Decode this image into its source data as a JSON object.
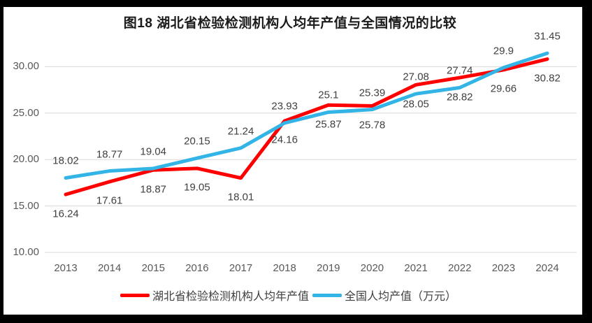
{
  "window": {
    "frame_color": "#000000",
    "background": "#FFFFFF"
  },
  "chart_data": {
    "type": "line",
    "title": "图18 湖北省检验检测机构人均年产值与全国情况的比较",
    "categories": [
      "2013",
      "2014",
      "2015",
      "2016",
      "2017",
      "2018",
      "2019",
      "2020",
      "2021",
      "2022",
      "2023",
      "2024"
    ],
    "series": [
      {
        "name": "湖北省检验检测机构人均年产值",
        "color": "#FF0000",
        "label_side": "below",
        "values": [
          16.24,
          17.61,
          18.87,
          19.05,
          18.01,
          24.16,
          25.87,
          25.78,
          28.05,
          28.82,
          29.66,
          30.82
        ],
        "labels": [
          "16.24",
          "17.61",
          "18.87",
          "19.05",
          "18.01",
          "24.16",
          "25.87",
          "25.78",
          "28.05",
          "28.82",
          "29.66",
          "30.82"
        ]
      },
      {
        "name": "全国人均产值（万元）",
        "color": "#32B4E6",
        "label_side": "above",
        "values": [
          18.02,
          18.77,
          19.04,
          20.15,
          21.24,
          23.93,
          25.1,
          25.39,
          27.08,
          27.74,
          29.9,
          31.45
        ],
        "labels": [
          "18.02",
          "18.77",
          "19.04",
          "20.15",
          "21.24",
          "23.93",
          "25.1",
          "25.39",
          "27.08",
          "27.74",
          "29.9",
          "31.45"
        ]
      }
    ],
    "y_axis": {
      "ticks": [
        {
          "value": 10,
          "label": "10.00"
        },
        {
          "value": 15,
          "label": "15.00"
        },
        {
          "value": 20,
          "label": "20.00"
        },
        {
          "value": 25,
          "label": "25.00"
        },
        {
          "value": 30,
          "label": "30.00"
        }
      ],
      "ylim": [
        10,
        31.8
      ]
    },
    "grid": true,
    "legend_position": "bottom",
    "colors": {
      "grid": "#D9D9D9",
      "tick_text": "#595959",
      "data_label_text": "#404040",
      "title_text": "#1A1A1A",
      "legend_text": "#404040"
    }
  }
}
